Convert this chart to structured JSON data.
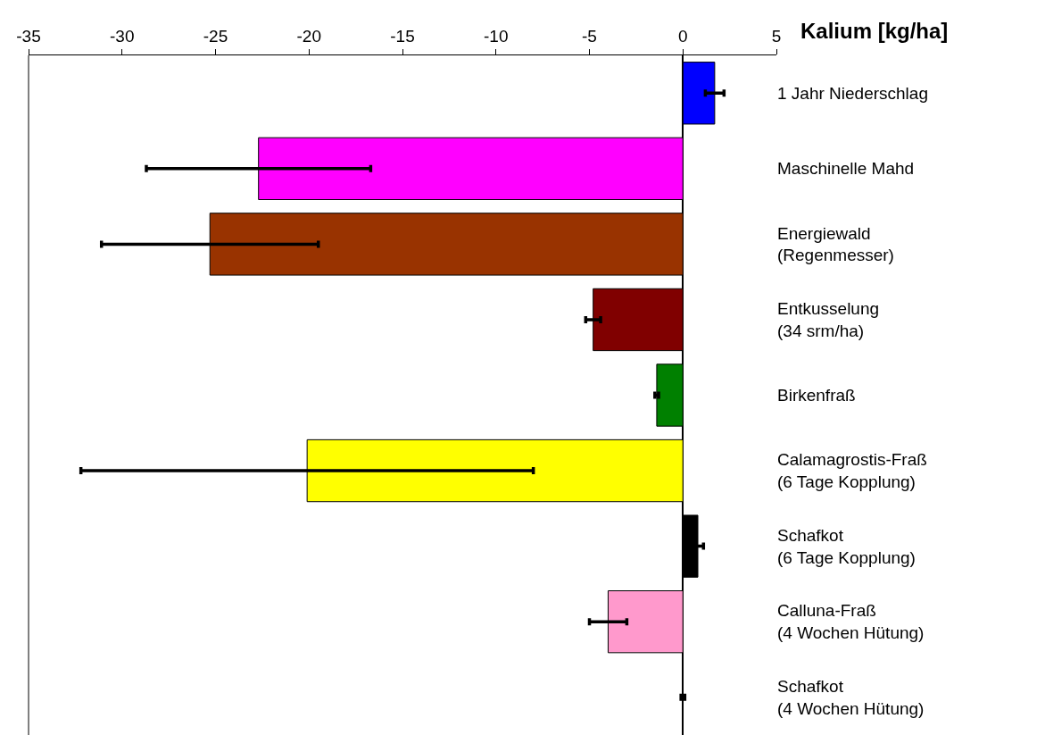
{
  "chart_data": {
    "type": "bar",
    "orientation": "horizontal",
    "xlabel": "Kalium [kg/ha]",
    "categories": [
      "1 Jahr Niederschlag",
      "Maschinelle Mahd",
      "Energiewald\n(Regenmesser)",
      "Entkusselung\n(34 srm/ha)",
      "Birkenfraß",
      "Calamagrostis-Fraß\n(6 Tage Kopplung)",
      "Schafkot\n(6 Tage Kopplung)",
      "Calluna-Fraß\n(4 Wochen Hütung)",
      "Schafkot\n(4 Wochen Hütung)"
    ],
    "values": [
      1.7,
      -22.7,
      -25.3,
      -4.8,
      -1.4,
      -20.1,
      0.8,
      -4.0,
      0
    ],
    "errors": [
      0.5,
      6.0,
      5.8,
      0.4,
      0.1,
      12.1,
      0.3,
      1.0,
      0.1
    ],
    "colors": [
      "#0000ff",
      "#ff00ff",
      "#993300",
      "#800000",
      "#008000",
      "#ffff00",
      "#000000",
      "#ff99cc",
      "#000000"
    ],
    "xlim": [
      -35,
      5
    ],
    "xticks": [
      -35,
      -30,
      -25,
      -20,
      -15,
      -10,
      -5,
      0,
      5
    ],
    "legend": false
  }
}
